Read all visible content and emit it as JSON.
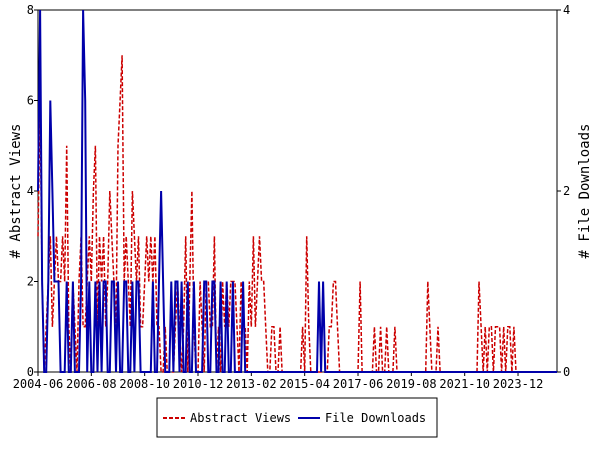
{
  "chart_data": {
    "type": "line",
    "y_label": "# Abstract Views",
    "y2_label": "# File Downloads",
    "x": [
      "2004-06",
      "2004-07",
      "2004-08",
      "2004-09",
      "2004-10",
      "2004-11",
      "2004-12",
      "2005-01",
      "2005-02",
      "2005-03",
      "2005-04",
      "2005-05",
      "2005-06",
      "2005-07",
      "2005-08",
      "2005-09",
      "2005-10",
      "2005-11",
      "2005-12",
      "2006-01",
      "2006-02",
      "2006-03",
      "2006-04",
      "2006-05",
      "2006-06",
      "2006-07",
      "2006-08",
      "2006-09",
      "2006-10",
      "2006-11",
      "2006-12",
      "2007-01",
      "2007-02",
      "2007-03",
      "2007-04",
      "2007-05",
      "2007-06",
      "2007-07",
      "2007-08",
      "2007-09",
      "2007-10",
      "2007-11",
      "2007-12",
      "2008-01",
      "2008-02",
      "2008-03",
      "2008-04",
      "2008-05",
      "2008-06",
      "2008-07",
      "2008-08",
      "2008-09",
      "2008-10",
      "2008-11",
      "2008-12",
      "2009-01",
      "2009-02",
      "2009-03",
      "2009-04",
      "2009-05",
      "2009-06",
      "2009-07",
      "2009-08",
      "2009-09",
      "2009-10",
      "2009-11",
      "2009-12",
      "2010-01",
      "2010-02",
      "2010-03",
      "2010-04",
      "2010-05",
      "2010-06",
      "2010-07",
      "2010-08",
      "2010-09",
      "2010-10",
      "2010-11",
      "2010-12",
      "2011-01",
      "2011-02",
      "2011-03",
      "2011-04",
      "2011-05",
      "2011-06",
      "2011-07",
      "2011-08",
      "2011-09",
      "2011-10",
      "2011-11",
      "2011-12",
      "2012-01",
      "2012-02",
      "2012-03",
      "2012-04",
      "2012-05",
      "2012-06",
      "2012-07",
      "2012-08",
      "2012-09",
      "2012-10",
      "2012-11",
      "2012-12",
      "2013-01",
      "2013-02",
      "2013-03",
      "2013-04",
      "2013-05",
      "2013-06",
      "2013-07",
      "2013-08",
      "2013-09",
      "2013-10",
      "2013-11",
      "2013-12",
      "2014-01",
      "2014-02",
      "2014-03",
      "2014-04",
      "2014-05",
      "2014-06",
      "2014-07",
      "2014-08",
      "2014-09",
      "2014-10",
      "2014-11",
      "2014-12",
      "2015-01",
      "2015-02",
      "2015-03",
      "2015-04",
      "2015-05",
      "2015-06",
      "2015-07",
      "2015-08",
      "2015-09",
      "2015-10",
      "2015-11",
      "2015-12",
      "2016-01",
      "2016-02",
      "2016-03",
      "2016-04",
      "2016-05",
      "2016-06",
      "2016-07",
      "2016-08",
      "2016-09",
      "2016-10",
      "2016-11",
      "2016-12",
      "2017-01",
      "2017-02",
      "2017-03",
      "2017-04",
      "2017-05",
      "2017-06",
      "2017-07",
      "2017-08",
      "2017-09",
      "2017-10",
      "2017-11",
      "2017-12",
      "2018-01",
      "2018-02",
      "2018-03",
      "2018-04",
      "2018-05",
      "2018-06",
      "2018-07",
      "2018-08",
      "2018-09",
      "2018-10",
      "2018-11",
      "2018-12",
      "2019-01",
      "2019-02",
      "2019-03",
      "2019-04",
      "2019-05",
      "2019-06",
      "2019-07",
      "2019-08",
      "2019-09",
      "2019-10",
      "2019-11",
      "2019-12",
      "2020-01",
      "2020-02",
      "2020-03",
      "2020-04",
      "2020-05",
      "2020-06",
      "2020-07",
      "2020-08",
      "2020-09",
      "2020-10",
      "2020-11",
      "2020-12",
      "2021-01",
      "2021-02",
      "2021-03",
      "2021-04",
      "2021-05",
      "2021-06",
      "2021-07",
      "2021-08",
      "2021-09",
      "2021-10",
      "2021-11",
      "2021-12",
      "2022-01",
      "2022-02",
      "2022-03",
      "2022-04",
      "2022-05",
      "2022-06",
      "2022-07",
      "2022-08",
      "2022-09",
      "2022-10",
      "2022-11",
      "2022-12",
      "2023-01",
      "2023-02",
      "2023-03",
      "2023-04",
      "2023-05",
      "2023-06",
      "2023-07",
      "2023-08",
      "2023-09",
      "2023-10",
      "2023-11",
      "2023-12",
      "2024-01",
      "2024-02",
      "2024-03",
      "2024-04",
      "2024-05",
      "2024-06",
      "2024-07",
      "2024-08",
      "2024-09",
      "2024-10",
      "2024-11",
      "2024-12",
      "2025-01",
      "2025-02",
      "2025-03",
      "2025-04",
      "2025-05",
      "2025-06",
      "2025-07"
    ],
    "xlim": [
      "2004-06",
      "2025-07"
    ],
    "xticks": [
      "2004-06",
      "2006-08",
      "2008-10",
      "2010-12",
      "2013-02",
      "2015-04",
      "2017-06",
      "2019-08",
      "2021-10",
      "2023-12"
    ],
    "ylim": [
      0,
      8
    ],
    "yticks": [
      0,
      2,
      4,
      6,
      8
    ],
    "y2lim": [
      0,
      4
    ],
    "y2ticks": [
      0,
      2,
      4
    ],
    "legend": "bottom",
    "series": [
      {
        "name": "Abstract Views",
        "color": "#cc0000",
        "dash": true,
        "values": [
          3,
          6,
          2,
          0,
          1,
          2,
          3,
          1,
          2,
          3,
          2,
          2,
          3,
          2,
          5,
          1,
          0,
          2,
          1,
          0,
          2,
          3,
          1,
          1,
          2,
          3,
          2,
          4,
          5,
          1,
          3,
          2,
          3,
          1,
          2,
          4,
          3,
          2,
          1,
          5,
          6,
          7,
          2,
          3,
          2,
          1,
          4,
          3,
          2,
          3,
          1,
          1,
          2,
          3,
          2,
          3,
          2,
          3,
          1,
          1,
          0,
          0,
          1,
          0,
          0,
          0,
          0,
          1,
          2,
          1,
          0,
          1,
          3,
          0,
          2,
          4,
          1,
          0,
          0,
          2,
          1,
          0,
          2,
          2,
          1,
          1,
          3,
          0,
          1,
          0,
          2,
          1,
          2,
          1,
          2,
          2,
          2,
          1,
          0,
          2,
          1,
          1,
          0,
          2,
          1,
          3,
          1,
          2,
          3,
          2,
          2,
          1,
          0,
          0,
          1,
          1,
          0,
          0,
          1,
          0,
          0,
          0,
          0,
          0,
          0,
          0,
          0,
          0,
          0,
          1,
          0,
          3,
          1,
          0,
          0,
          0,
          0,
          0,
          0,
          0,
          0,
          0,
          1,
          1,
          2,
          2,
          1,
          0,
          0,
          0,
          0,
          0,
          0,
          0,
          0,
          0,
          0,
          2,
          0,
          0,
          0,
          0,
          0,
          0,
          1,
          0,
          0,
          1,
          0,
          0,
          1,
          0,
          0,
          0,
          1,
          0,
          0,
          0,
          0,
          0,
          0,
          0,
          0,
          0,
          0,
          0,
          0,
          0,
          0,
          0,
          2,
          1,
          0,
          0,
          0,
          1,
          0,
          0,
          0,
          0,
          0,
          0,
          0,
          0,
          0,
          0,
          0,
          0,
          0,
          0,
          0,
          0,
          0,
          0,
          0,
          2,
          1,
          0,
          1,
          0,
          1,
          1,
          0,
          1,
          1,
          1,
          0,
          1,
          0,
          1,
          1,
          0,
          1,
          0,
          0,
          0,
          0,
          0,
          0,
          0,
          0,
          0,
          0,
          0,
          0,
          0,
          0,
          0,
          0,
          0,
          0,
          0,
          0,
          0
        ]
      },
      {
        "name": "File Downloads",
        "color": "#0000aa",
        "axis": "y2",
        "values": [
          2,
          4,
          1,
          0,
          0,
          1,
          3,
          2,
          1,
          1,
          1,
          0,
          0,
          0,
          1,
          0,
          0,
          1,
          0,
          0,
          0,
          1,
          4,
          3,
          0,
          1,
          0,
          0,
          1,
          0,
          1,
          0,
          1,
          1,
          0,
          0,
          1,
          1,
          0,
          1,
          0,
          0,
          1,
          1,
          0,
          0,
          1,
          0,
          1,
          1,
          0,
          0,
          0,
          0,
          0,
          0,
          1,
          0,
          0,
          1,
          2,
          1,
          0,
          0,
          0,
          1,
          0,
          1,
          1,
          0,
          1,
          0,
          0,
          1,
          0,
          0,
          1,
          0,
          0,
          0,
          0,
          1,
          1,
          0,
          0,
          1,
          1,
          0,
          0,
          1,
          0,
          0,
          1,
          0,
          0,
          1,
          0,
          0,
          0,
          0,
          1,
          0,
          0,
          0,
          0,
          0,
          0,
          0,
          0,
          0,
          0,
          0,
          0,
          0,
          0,
          0,
          0,
          0,
          0,
          0,
          0,
          0,
          0,
          0,
          0,
          0,
          0,
          0,
          0,
          0,
          0,
          0,
          0,
          0,
          0,
          0,
          0,
          1,
          0,
          1,
          0,
          0,
          0,
          0,
          0,
          0,
          0,
          0,
          0,
          0,
          0,
          0,
          0,
          0,
          0,
          0,
          0,
          0,
          0,
          0,
          0,
          0,
          0,
          0,
          0,
          0,
          0,
          0,
          0,
          0,
          0,
          0,
          0,
          0,
          0,
          0,
          0,
          0,
          0,
          0,
          0,
          0,
          0,
          0,
          0,
          0,
          0,
          0,
          0,
          0,
          0,
          0,
          0,
          0,
          0,
          0,
          0,
          0,
          0,
          0,
          0,
          0,
          0,
          0,
          0,
          0,
          0,
          0,
          0,
          0,
          0,
          0,
          0,
          0,
          0,
          0,
          0,
          0,
          0,
          0,
          0,
          0,
          0,
          0,
          0,
          0,
          0,
          0,
          0,
          0,
          0,
          0,
          0,
          0,
          0,
          0,
          0,
          0,
          0,
          0,
          0,
          0,
          0,
          0,
          0,
          0,
          0,
          0,
          0,
          0,
          0,
          0,
          0,
          0
        ]
      }
    ]
  }
}
